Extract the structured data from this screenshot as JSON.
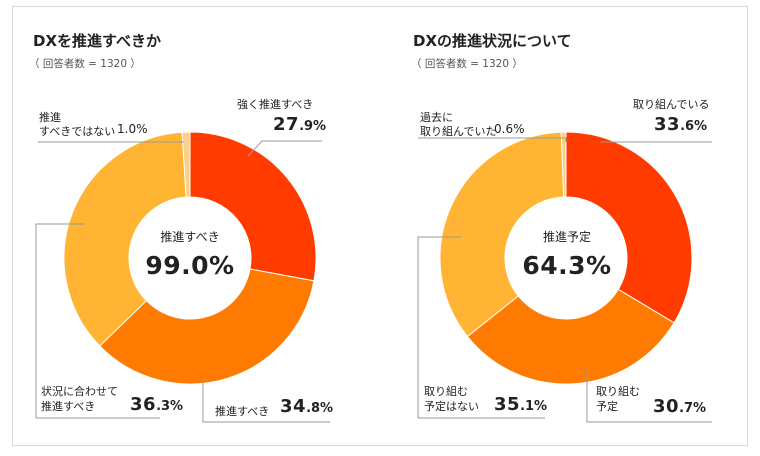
{
  "colors": {
    "red": "#FF3B00",
    "orange": "#FF7A00",
    "amber": "#FFB533",
    "cream": "#F7D08A",
    "line": "#9a9a9a"
  },
  "chart_data": [
    {
      "type": "pie",
      "title": "DXを推進すべきか",
      "subtitle": "（ 回答者数 = 1320 ）",
      "center_label": "推進すべき",
      "center_value": "99.0%",
      "slices": [
        {
          "label": "強く推進すべき",
          "value": 27.9,
          "int": "27",
          "dec": ".9%"
        },
        {
          "label": "推進すべき",
          "value": 34.8,
          "int": "34",
          "dec": ".8%"
        },
        {
          "label": "状況に合わせて推進すべき",
          "label_line1": "状況に合わせて",
          "label_line2": "推進すべき",
          "value": 36.3,
          "int": "36",
          "dec": ".3%"
        },
        {
          "label": "推進すべきではない",
          "label_line1": "推進",
          "label_line2": "すべきではない",
          "value": 1.0,
          "text": "1.0%"
        }
      ]
    },
    {
      "type": "pie",
      "title": "DXの推進状況について",
      "subtitle": "（ 回答者数 = 1320 ）",
      "center_label": "推進予定",
      "center_value": "64.3%",
      "slices": [
        {
          "label": "取り組んでいる",
          "value": 33.6,
          "int": "33",
          "dec": ".6%"
        },
        {
          "label": "取り組む予定",
          "label_line1": "取り組む",
          "label_line2": "予定",
          "value": 30.7,
          "int": "30",
          "dec": ".7%"
        },
        {
          "label": "取り組む予定はない",
          "label_line1": "取り組む",
          "label_line2": "予定はない",
          "value": 35.1,
          "int": "35",
          "dec": ".1%"
        },
        {
          "label": "過去に取り組んでいた",
          "label_line1": "過去に",
          "label_line2": "取り組んでいた",
          "value": 0.6,
          "text": "0.6%"
        }
      ]
    }
  ]
}
